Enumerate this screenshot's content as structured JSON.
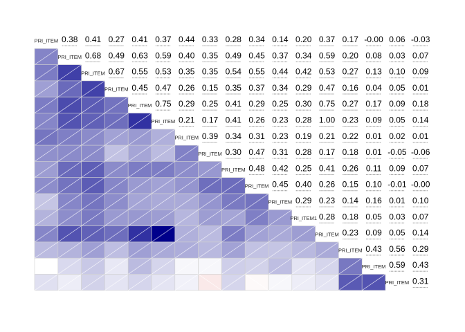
{
  "chart_data": {
    "type": "heatmap",
    "variant": "corrgram",
    "lower_panel": "shade",
    "upper_panel": "correlation value with confidence interval",
    "diagonal_label": "PRI_ITEM",
    "diagonal_labels": [
      "PRI_ITEM",
      "PRI_ITEM",
      "PRI_ITEM",
      "PRI_ITEM",
      "PRI_ITEM",
      "PRI_ITEM",
      "PRI_ITEM",
      "PRI_ITEM",
      "PRI_ITEM",
      "PRI_ITEM",
      "PRI_ITEM",
      "PRI_ITEM1",
      "PRI_ITEM",
      "PRI_ITEM",
      "PRI_ITEM",
      "PRI_ITEM"
    ],
    "color_scale": {
      "negative": "#cc3333",
      "zero": "#ffffff",
      "positive": "#00008b"
    },
    "values": [
      [
        "0.38",
        "0.41",
        "0.27",
        "0.41",
        "0.37",
        "0.44",
        "0.33",
        "0.28",
        "0.34",
        "0.14",
        "0.20",
        "0.37",
        "0.17",
        "-0.00",
        "0.06",
        "-0.03"
      ],
      [
        "0.68",
        "0.49",
        "0.63",
        "0.59",
        "0.40",
        "0.35",
        "0.49",
        "0.45",
        "0.37",
        "0.34",
        "0.59",
        "0.20",
        "0.08",
        "0.03",
        "0.07"
      ],
      [
        "0.67",
        "0.55",
        "0.53",
        "0.35",
        "0.35",
        "0.54",
        "0.55",
        "0.44",
        "0.42",
        "0.53",
        "0.27",
        "0.13",
        "0.10",
        "0.09"
      ],
      [
        "0.45",
        "0.47",
        "0.26",
        "0.15",
        "0.35",
        "0.37",
        "0.34",
        "0.29",
        "0.47",
        "0.16",
        "0.04",
        "0.05",
        "0.01"
      ],
      [
        "0.75",
        "0.29",
        "0.25",
        "0.41",
        "0.29",
        "0.25",
        "0.30",
        "0.75",
        "0.27",
        "0.17",
        "0.09",
        "0.18"
      ],
      [
        "0.21",
        "0.17",
        "0.41",
        "0.26",
        "0.23",
        "0.28",
        "1.00",
        "0.23",
        "0.09",
        "0.05",
        "0.14"
      ],
      [
        "0.39",
        "0.34",
        "0.31",
        "0.23",
        "0.19",
        "0.21",
        "0.22",
        "0.01",
        "0.02",
        "0.01"
      ],
      [
        "0.30",
        "0.47",
        "0.31",
        "0.28",
        "0.17",
        "0.18",
        "0.01",
        "-0.05",
        "-0.06"
      ],
      [
        "0.48",
        "0.42",
        "0.25",
        "0.41",
        "0.26",
        "0.11",
        "0.09",
        "0.07"
      ],
      [
        "0.45",
        "0.40",
        "0.26",
        "0.15",
        "0.10",
        "-0.01",
        "-0.00"
      ],
      [
        "0.29",
        "0.23",
        "0.14",
        "0.16",
        "0.01",
        "0.10"
      ],
      [
        "0.28",
        "0.18",
        "0.05",
        "0.03",
        "0.07"
      ],
      [
        "0.23",
        "0.09",
        "0.05",
        "0.14"
      ],
      [
        "0.43",
        "0.56",
        "0.29"
      ],
      [
        "0.59",
        "0.43"
      ],
      [
        "0.31"
      ]
    ]
  }
}
